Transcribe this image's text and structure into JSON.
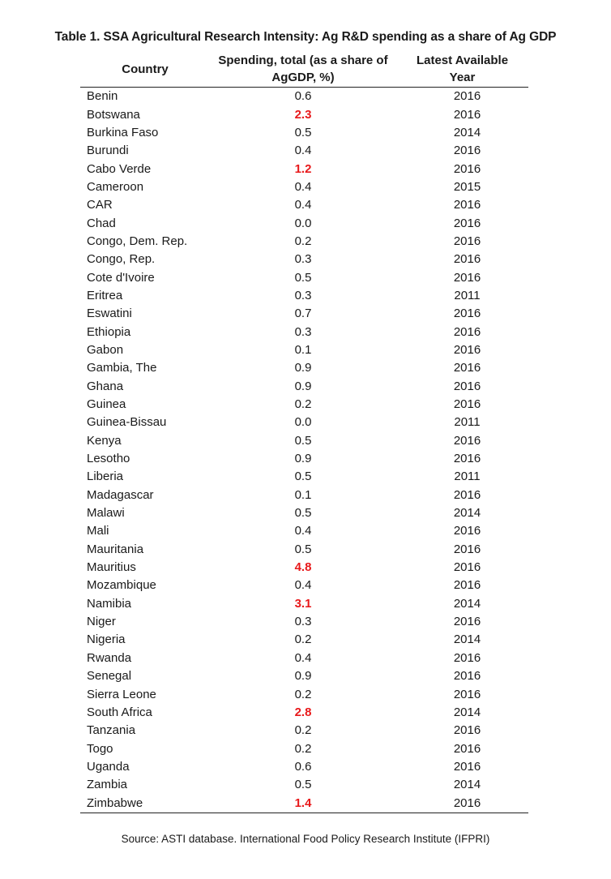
{
  "title": "Table 1. SSA Agricultural Research Intensity: Ag R&D spending as a share of Ag GDP",
  "headers": {
    "country": "Country",
    "spending_line1": "Spending, total (as a share of",
    "spending_line2": "AgGDP, %)",
    "year_line1": "Latest Available",
    "year_line2": "Year"
  },
  "highlight_color": "#e8191b",
  "rows": [
    {
      "country": "Benin",
      "spending": "0.6",
      "year": "2016",
      "highlight": false
    },
    {
      "country": "Botswana",
      "spending": "2.3",
      "year": "2016",
      "highlight": true
    },
    {
      "country": "Burkina Faso",
      "spending": "0.5",
      "year": "2014",
      "highlight": false
    },
    {
      "country": "Burundi",
      "spending": "0.4",
      "year": "2016",
      "highlight": false
    },
    {
      "country": "Cabo Verde",
      "spending": "1.2",
      "year": "2016",
      "highlight": true
    },
    {
      "country": "Cameroon",
      "spending": "0.4",
      "year": "2015",
      "highlight": false
    },
    {
      "country": "CAR",
      "spending": "0.4",
      "year": "2016",
      "highlight": false
    },
    {
      "country": "Chad",
      "spending": "0.0",
      "year": "2016",
      "highlight": false
    },
    {
      "country": "Congo, Dem. Rep.",
      "spending": "0.2",
      "year": "2016",
      "highlight": false
    },
    {
      "country": "Congo, Rep.",
      "spending": "0.3",
      "year": "2016",
      "highlight": false
    },
    {
      "country": "Cote d'Ivoire",
      "spending": "0.5",
      "year": "2016",
      "highlight": false
    },
    {
      "country": "Eritrea",
      "spending": "0.3",
      "year": "2011",
      "highlight": false
    },
    {
      "country": "Eswatini",
      "spending": "0.7",
      "year": "2016",
      "highlight": false
    },
    {
      "country": "Ethiopia",
      "spending": "0.3",
      "year": "2016",
      "highlight": false
    },
    {
      "country": "Gabon",
      "spending": "0.1",
      "year": "2016",
      "highlight": false
    },
    {
      "country": "Gambia, The",
      "spending": "0.9",
      "year": "2016",
      "highlight": false
    },
    {
      "country": "Ghana",
      "spending": "0.9",
      "year": "2016",
      "highlight": false
    },
    {
      "country": "Guinea",
      "spending": "0.2",
      "year": "2016",
      "highlight": false
    },
    {
      "country": "Guinea-Bissau",
      "spending": "0.0",
      "year": "2011",
      "highlight": false
    },
    {
      "country": "Kenya",
      "spending": "0.5",
      "year": "2016",
      "highlight": false
    },
    {
      "country": "Lesotho",
      "spending": "0.9",
      "year": "2016",
      "highlight": false
    },
    {
      "country": "Liberia",
      "spending": "0.5",
      "year": "2011",
      "highlight": false
    },
    {
      "country": "Madagascar",
      "spending": "0.1",
      "year": "2016",
      "highlight": false
    },
    {
      "country": "Malawi",
      "spending": "0.5",
      "year": "2014",
      "highlight": false
    },
    {
      "country": "Mali",
      "spending": "0.4",
      "year": "2016",
      "highlight": false
    },
    {
      "country": "Mauritania",
      "spending": "0.5",
      "year": "2016",
      "highlight": false
    },
    {
      "country": "Mauritius",
      "spending": "4.8",
      "year": "2016",
      "highlight": true
    },
    {
      "country": "Mozambique",
      "spending": "0.4",
      "year": "2016",
      "highlight": false
    },
    {
      "country": "Namibia",
      "spending": "3.1",
      "year": "2014",
      "highlight": true
    },
    {
      "country": "Niger",
      "spending": "0.3",
      "year": "2016",
      "highlight": false
    },
    {
      "country": "Nigeria",
      "spending": "0.2",
      "year": "2014",
      "highlight": false
    },
    {
      "country": "Rwanda",
      "spending": "0.4",
      "year": "2016",
      "highlight": false
    },
    {
      "country": "Senegal",
      "spending": "0.9",
      "year": "2016",
      "highlight": false
    },
    {
      "country": "Sierra Leone",
      "spending": "0.2",
      "year": "2016",
      "highlight": false
    },
    {
      "country": "South Africa",
      "spending": "2.8",
      "year": "2014",
      "highlight": true
    },
    {
      "country": "Tanzania",
      "spending": "0.2",
      "year": "2016",
      "highlight": false
    },
    {
      "country": "Togo",
      "spending": "0.2",
      "year": "2016",
      "highlight": false
    },
    {
      "country": "Uganda",
      "spending": "0.6",
      "year": "2016",
      "highlight": false
    },
    {
      "country": "Zambia",
      "spending": "0.5",
      "year": "2014",
      "highlight": false
    },
    {
      "country": "Zimbabwe",
      "spending": "1.4",
      "year": "2016",
      "highlight": true
    }
  ],
  "source": "Source: ASTI database. International Food Policy Research Institute (IFPRI)"
}
